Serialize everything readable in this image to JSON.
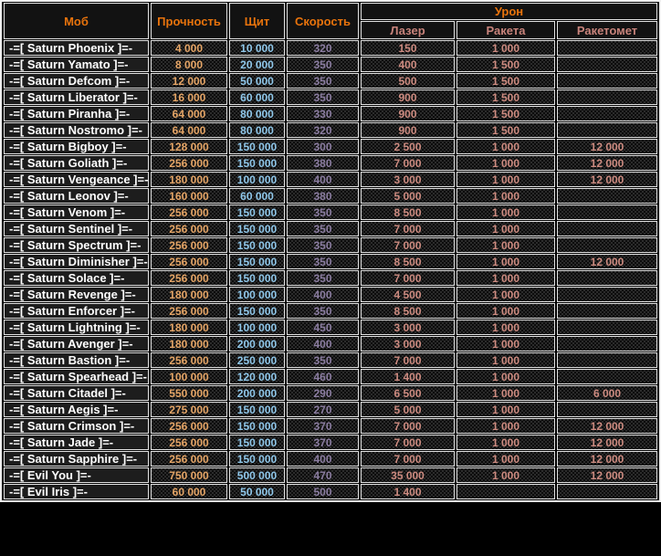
{
  "colors": {
    "background": "#000000",
    "grid_border": "#e3e3e3",
    "header_text": "#e8730c",
    "subheader_text": "#c8837b",
    "mob_name_text": "#ffffff",
    "durability_text": "#e5a566",
    "shield_text": "#8fc7ea",
    "speed_text": "#8b7da1",
    "damage_text": "#cd8b80"
  },
  "chart_data": {
    "type": "table",
    "title": "",
    "columns": [
      "Моб",
      "Прочность",
      "Щит",
      "Скорость",
      "Лазер",
      "Ракета",
      "Ракетомет"
    ],
    "column_groups": [
      {
        "label": "Урон",
        "spans": [
          "Лазер",
          "Ракета",
          "Ракетомет"
        ]
      }
    ],
    "rows": [
      [
        "-=[ Saturn Phoenix ]=-",
        "4 000",
        "10 000",
        "320",
        "150",
        "1 000",
        ""
      ],
      [
        "-=[ Saturn Yamato ]=-",
        "8 000",
        "20 000",
        "350",
        "400",
        "1 500",
        ""
      ],
      [
        "-=[ Saturn Defcom ]=-",
        "12 000",
        "50 000",
        "350",
        "500",
        "1 500",
        ""
      ],
      [
        "-=[ Saturn Liberator ]=-",
        "16 000",
        "60 000",
        "350",
        "900",
        "1 500",
        ""
      ],
      [
        "-=[ Saturn Piranha ]=-",
        "64 000",
        "80 000",
        "330",
        "900",
        "1 500",
        ""
      ],
      [
        "-=[ Saturn Nostromo ]=-",
        "64 000",
        "80 000",
        "320",
        "900",
        "1 500",
        ""
      ],
      [
        "-=[ Saturn Bigboy ]=-",
        "128 000",
        "150 000",
        "300",
        "2 500",
        "1 000",
        "12 000"
      ],
      [
        "-=[ Saturn Goliath ]=-",
        "256 000",
        "150 000",
        "380",
        "7 000",
        "1 000",
        "12 000"
      ],
      [
        "-=[ Saturn Vengeance ]=-",
        "180 000",
        "100 000",
        "400",
        "3 000",
        "1 000",
        "12 000"
      ],
      [
        "-=[ Saturn Leonov ]=-",
        "160 000",
        "60 000",
        "380",
        "5 000",
        "1 000",
        ""
      ],
      [
        "-=[ Saturn Venom ]=-",
        "256 000",
        "150 000",
        "350",
        "8 500",
        "1 000",
        ""
      ],
      [
        "-=[ Saturn Sentinel ]=-",
        "256 000",
        "150 000",
        "350",
        "7 000",
        "1 000",
        ""
      ],
      [
        "-=[ Saturn Spectrum ]=-",
        "256 000",
        "150 000",
        "350",
        "7 000",
        "1 000",
        ""
      ],
      [
        "-=[ Saturn Diminisher ]=-",
        "256 000",
        "150 000",
        "350",
        "8 500",
        "1 000",
        "12 000"
      ],
      [
        "-=[ Saturn Solace ]=-",
        "256 000",
        "150 000",
        "350",
        "7 000",
        "1 000",
        ""
      ],
      [
        "-=[ Saturn Revenge ]=-",
        "180 000",
        "100 000",
        "400",
        "4 500",
        "1 000",
        ""
      ],
      [
        "-=[ Saturn Enforcer ]=-",
        "256 000",
        "150 000",
        "350",
        "8 500",
        "1 000",
        ""
      ],
      [
        "-=[ Saturn Lightning ]=-",
        "180 000",
        "100 000",
        "450",
        "3 000",
        "1 000",
        ""
      ],
      [
        "-=[ Saturn Avenger ]=-",
        "180 000",
        "200 000",
        "400",
        "3 000",
        "1 000",
        ""
      ],
      [
        "-=[ Saturn Bastion ]=-",
        "256 000",
        "250 000",
        "350",
        "7 000",
        "1 000",
        ""
      ],
      [
        "-=[ Saturn Spearhead ]=-",
        "100 000",
        "120 000",
        "460",
        "1 400",
        "1 000",
        ""
      ],
      [
        "-=[ Saturn Citadel ]=-",
        "550 000",
        "200 000",
        "290",
        "6 500",
        "1 000",
        "6 000"
      ],
      [
        "-=[ Saturn Aegis ]=-",
        "275 000",
        "150 000",
        "270",
        "5 000",
        "1 000",
        ""
      ],
      [
        "-=[ Saturn Crimson ]=-",
        "256 000",
        "150 000",
        "370",
        "7 000",
        "1 000",
        "12 000"
      ],
      [
        "-=[ Saturn Jade ]=-",
        "256 000",
        "150 000",
        "370",
        "7 000",
        "1 000",
        "12 000"
      ],
      [
        "-=[ Saturn Sapphire ]=-",
        "256 000",
        "150 000",
        "400",
        "7 000",
        "1 000",
        "12 000"
      ],
      [
        "-=[ Evil You ]=-",
        "750 000",
        "500 000",
        "470",
        "35 000",
        "1 000",
        "12 000"
      ],
      [
        "-=[ Evil Iris ]=-",
        "60 000",
        "50 000",
        "500",
        "1 400",
        "",
        ""
      ]
    ]
  }
}
